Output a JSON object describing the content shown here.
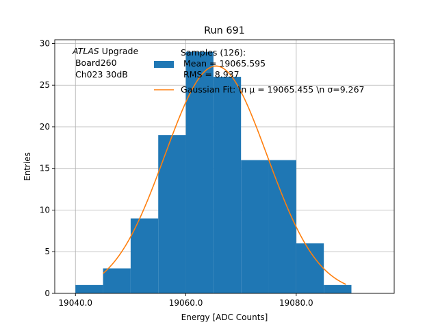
{
  "chart_data": {
    "type": "bar",
    "title": "Run 691",
    "xlabel": "Energy [ADC Counts]",
    "ylabel": "Entries",
    "xlim": [
      19036.25,
      19097.75
    ],
    "ylim": [
      0,
      30.45
    ],
    "xticks": [
      19040.0,
      19060.0,
      19080.0
    ],
    "xtick_labels": [
      "19040.0",
      "19060.0",
      "19080.0"
    ],
    "yticks": [
      0,
      5,
      10,
      15,
      20,
      25,
      30
    ],
    "ytick_labels": [
      "0",
      "5",
      "10",
      "15",
      "20",
      "25",
      "30"
    ],
    "grid": true,
    "bar_color": "#1f77b4",
    "fit_color": "#ff7f0e",
    "bins": [
      {
        "x0": 19040,
        "x1": 19045,
        "count": 1
      },
      {
        "x0": 19045,
        "x1": 19050,
        "count": 3
      },
      {
        "x0": 19050,
        "x1": 19055,
        "count": 9
      },
      {
        "x0": 19055,
        "x1": 19060,
        "count": 19
      },
      {
        "x0": 19060,
        "x1": 19065,
        "count": 29
      },
      {
        "x0": 19065,
        "x1": 19070,
        "count": 26
      },
      {
        "x0": 19070,
        "x1": 19075,
        "count": 16
      },
      {
        "x0": 19075,
        "x1": 19080,
        "count": 16
      },
      {
        "x0": 19080,
        "x1": 19085,
        "count": 6
      },
      {
        "x0": 19085,
        "x1": 19090,
        "count": 1
      }
    ],
    "fit": {
      "mu": 19065.455,
      "sigma": 9.267,
      "amplitude": 27.3,
      "x_range": [
        19045,
        19089
      ]
    },
    "annotation": {
      "prefix": "ATLAS",
      "suffix": " Upgrade",
      "line2": " Board260",
      "line3": " Ch023 30dB"
    },
    "legend": {
      "placement": "top-right",
      "samples_lines": [
        "Samples (126):",
        " Mean = 19065.595",
        " RMS = 8.937"
      ],
      "fit_label": "Gaussian Fit: \\n μ = 19065.455 \\n σ=9.267"
    }
  }
}
